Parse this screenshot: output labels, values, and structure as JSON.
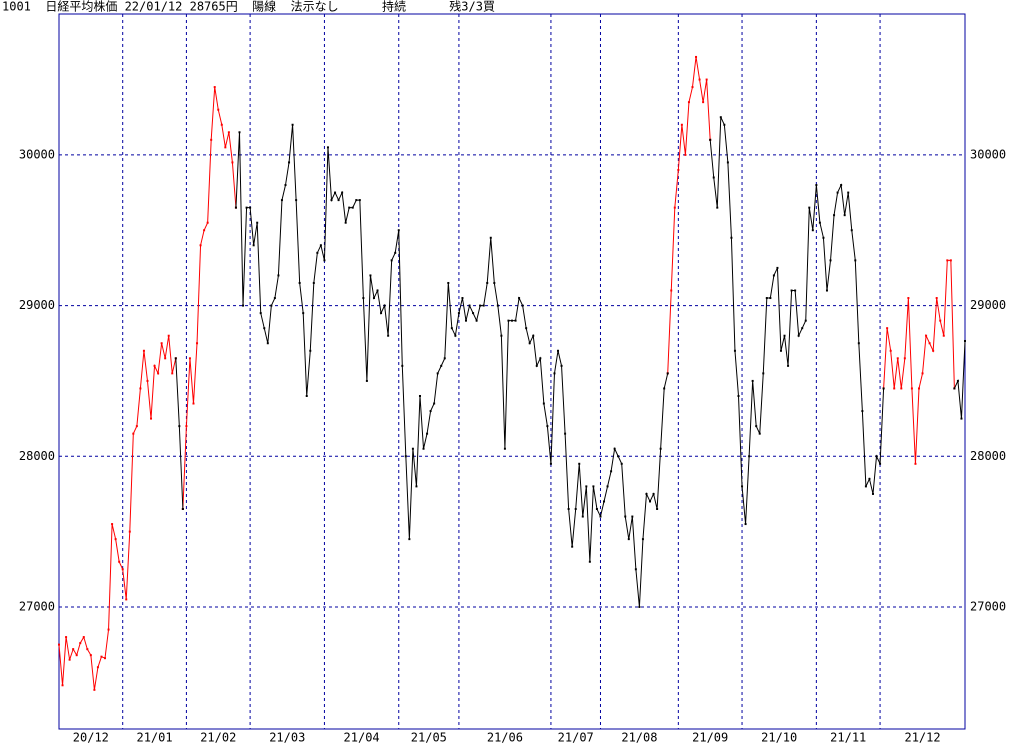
{
  "chart_data": {
    "type": "line",
    "title": "1001  日経平均株価 22/01/12 28765円  陽線  法示なし      持続      残3/3買",
    "categories": [
      "20/12",
      null,
      null,
      null,
      null,
      null,
      null,
      null,
      null,
      null,
      null,
      null,
      null,
      null,
      null,
      null,
      null,
      null,
      "21/01",
      null,
      null,
      null,
      null,
      null,
      null,
      null,
      null,
      null,
      null,
      null,
      null,
      null,
      null,
      null,
      null,
      null,
      "21/02",
      null,
      null,
      null,
      null,
      null,
      null,
      null,
      null,
      null,
      null,
      null,
      null,
      null,
      null,
      null,
      null,
      null,
      "21/03",
      null,
      null,
      null,
      null,
      null,
      null,
      null,
      null,
      null,
      null,
      null,
      null,
      null,
      null,
      null,
      null,
      null,
      null,
      null,
      null,
      "21/04",
      null,
      null,
      null,
      null,
      null,
      null,
      null,
      null,
      null,
      null,
      null,
      null,
      null,
      null,
      null,
      null,
      null,
      null,
      null,
      null,
      "21/05",
      null,
      null,
      null,
      null,
      null,
      null,
      null,
      null,
      null,
      null,
      null,
      null,
      null,
      null,
      null,
      null,
      "21/06",
      null,
      null,
      null,
      null,
      null,
      null,
      null,
      null,
      null,
      null,
      null,
      null,
      null,
      null,
      null,
      null,
      null,
      null,
      null,
      null,
      null,
      null,
      null,
      null,
      null,
      "21/07",
      null,
      null,
      null,
      null,
      null,
      null,
      null,
      null,
      null,
      null,
      null,
      null,
      null,
      "21/08",
      null,
      null,
      null,
      null,
      null,
      null,
      null,
      null,
      null,
      null,
      null,
      null,
      null,
      null,
      null,
      null,
      null,
      null,
      null,
      null,
      null,
      "21/09",
      null,
      null,
      null,
      null,
      null,
      null,
      null,
      null,
      null,
      null,
      null,
      null,
      null,
      null,
      null,
      null,
      null,
      "21/10",
      null,
      null,
      null,
      null,
      null,
      null,
      null,
      null,
      null,
      null,
      null,
      null,
      null,
      null,
      null,
      null,
      null,
      null,
      null,
      null,
      "21/11",
      null,
      null,
      null,
      null,
      null,
      null,
      null,
      null,
      null,
      null,
      null,
      null,
      null,
      null,
      null,
      null,
      null,
      "21/12",
      null,
      null,
      null,
      null,
      null,
      null,
      null,
      null,
      null,
      null,
      null,
      null,
      null,
      null,
      null,
      null,
      null,
      null,
      null,
      null,
      null,
      null,
      null,
      null
    ],
    "series": [
      {
        "color": "#ff0000",
        "values": [
          26750,
          26480,
          26800,
          26650,
          26720,
          26680,
          26760,
          26800,
          26720,
          26680,
          26450,
          26600,
          26670,
          26660,
          26850,
          27550,
          27450,
          27300,
          27250,
          27050,
          27500,
          28150,
          28200,
          28450,
          28700,
          28500,
          28250,
          28600,
          28550,
          28750,
          28650,
          28800,
          28550,
          28650,
          null,
          27650,
          28200,
          28650,
          28350,
          28750,
          29400,
          29500,
          29550,
          30100,
          30450,
          30300,
          30200,
          30050,
          30150,
          29950,
          29650,
          null,
          null,
          null,
          null,
          null,
          null,
          null,
          null,
          null,
          null,
          null,
          null,
          null,
          null,
          null,
          null,
          null,
          null,
          null,
          null,
          null,
          null,
          null,
          null,
          null,
          null,
          null,
          null,
          null,
          null,
          null,
          null,
          null,
          null,
          null,
          null,
          null,
          null,
          null,
          null,
          null,
          null,
          null,
          null,
          null,
          null,
          null,
          null,
          null,
          null,
          null,
          null,
          null,
          null,
          null,
          null,
          null,
          null,
          null,
          null,
          null,
          null,
          null,
          null,
          null,
          null,
          null,
          null,
          null,
          null,
          null,
          null,
          null,
          null,
          null,
          null,
          null,
          null,
          null,
          null,
          null,
          null,
          null,
          null,
          null,
          null,
          null,
          null,
          null,
          null,
          null,
          null,
          null,
          null,
          null,
          null,
          null,
          null,
          null,
          null,
          null,
          null,
          null,
          null,
          null,
          null,
          null,
          null,
          null,
          null,
          null,
          null,
          null,
          null,
          null,
          null,
          null,
          null,
          null,
          null,
          null,
          28550,
          29100,
          29650,
          29900,
          30200,
          30000,
          30350,
          30450,
          30650,
          30500,
          30350,
          30500,
          30100,
          null,
          null,
          null,
          null,
          null,
          null,
          null,
          null,
          null,
          null,
          null,
          null,
          null,
          null,
          null,
          null,
          null,
          null,
          null,
          null,
          null,
          null,
          null,
          null,
          null,
          null,
          null,
          null,
          null,
          null,
          null,
          null,
          null,
          null,
          null,
          null,
          null,
          null,
          null,
          null,
          null,
          null,
          null,
          null,
          null,
          null,
          null,
          null,
          28450,
          28850,
          28700,
          28450,
          28650,
          28450,
          28650,
          29050,
          28450,
          27950,
          28450,
          28550,
          28800,
          28750,
          28700,
          29050,
          28900,
          28800,
          29300,
          29300,
          28450,
          null,
          null,
          null
        ]
      },
      {
        "color": "#000000",
        "values": [
          null,
          null,
          null,
          null,
          null,
          null,
          null,
          null,
          null,
          null,
          null,
          null,
          null,
          null,
          null,
          null,
          null,
          null,
          null,
          null,
          null,
          null,
          null,
          null,
          null,
          null,
          null,
          null,
          null,
          null,
          null,
          null,
          null,
          28650,
          28200,
          27650,
          null,
          null,
          null,
          null,
          null,
          null,
          null,
          null,
          null,
          null,
          null,
          null,
          null,
          null,
          29650,
          30150,
          29000,
          29650,
          29650,
          29400,
          29550,
          28950,
          28850,
          28750,
          29000,
          29050,
          29200,
          29700,
          29800,
          29950,
          30200,
          29700,
          29150,
          28950,
          28400,
          28700,
          29150,
          29350,
          29400,
          29300,
          30050,
          29700,
          29750,
          29700,
          29750,
          29550,
          29650,
          29650,
          29700,
          29700,
          29050,
          28500,
          29200,
          29050,
          29100,
          28950,
          29000,
          28800,
          29300,
          29350,
          29500,
          28600,
          28000,
          27450,
          28050,
          27800,
          28400,
          28050,
          28150,
          28300,
          28350,
          28550,
          28600,
          28650,
          29150,
          28850,
          28800,
          28950,
          29050,
          28900,
          29000,
          28950,
          28900,
          29000,
          29000,
          29150,
          29450,
          29150,
          29000,
          28800,
          28050,
          28900,
          28900,
          28900,
          29050,
          29000,
          28850,
          28750,
          28800,
          28600,
          28650,
          28350,
          28200,
          27950,
          28550,
          28700,
          28600,
          28150,
          27650,
          27400,
          27650,
          27950,
          27600,
          27800,
          27300,
          27800,
          27650,
          27600,
          27700,
          27800,
          27900,
          28050,
          28000,
          27950,
          27600,
          27450,
          27600,
          27250,
          27000,
          27450,
          27750,
          27700,
          27750,
          27650,
          28050,
          28450,
          28550,
          null,
          null,
          null,
          null,
          null,
          null,
          null,
          null,
          null,
          null,
          null,
          30100,
          29850,
          29650,
          30250,
          30200,
          29950,
          29450,
          28700,
          28400,
          27800,
          27550,
          28000,
          28500,
          28200,
          28150,
          28550,
          29050,
          29050,
          29200,
          29250,
          28700,
          28800,
          28600,
          29100,
          29100,
          28800,
          28850,
          28900,
          29650,
          29500,
          29800,
          29550,
          29450,
          29100,
          29300,
          29600,
          29750,
          29800,
          29600,
          29750,
          29500,
          29300,
          28750,
          28300,
          27800,
          27850,
          27750,
          28000,
          27950,
          28450,
          null,
          null,
          null,
          null,
          null,
          null,
          null,
          null,
          null,
          null,
          null,
          null,
          null,
          null,
          null,
          null,
          null,
          null,
          null,
          28450,
          28500,
          28250,
          28765
        ]
      }
    ],
    "ylim": [
      26190,
      30935
    ],
    "yticks": [
      27000,
      28000,
      29000,
      30000
    ],
    "grid": true
  }
}
